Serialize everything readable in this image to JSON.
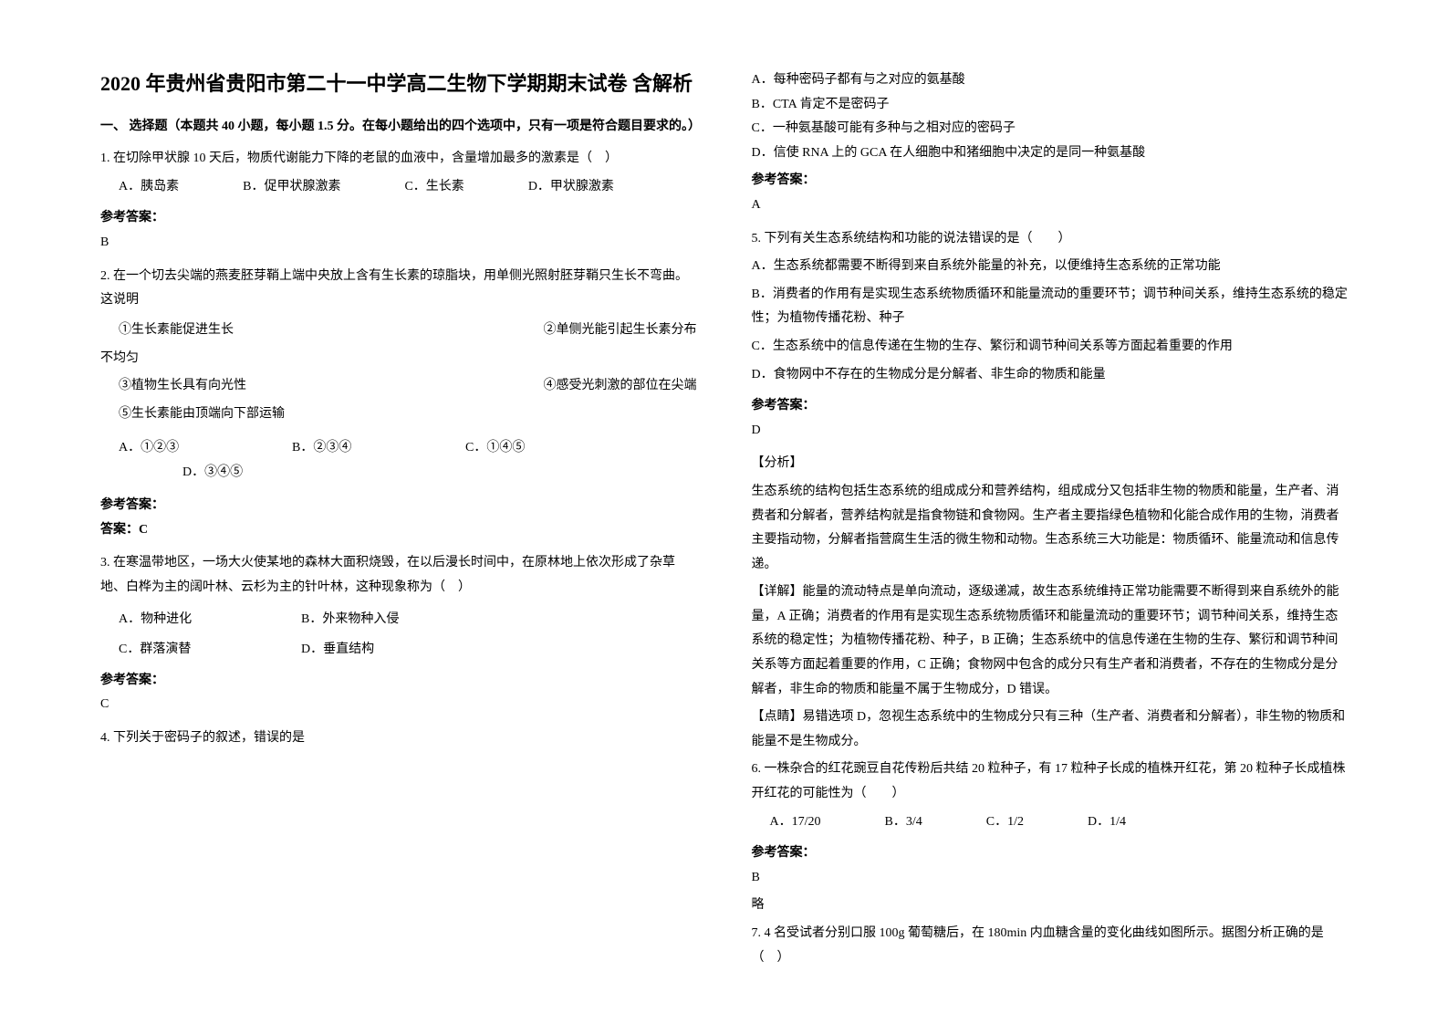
{
  "left": {
    "title": "2020 年贵州省贵阳市第二十一中学高二生物下学期期末试卷 含解析",
    "section_heading": "一、 选择题（本题共 40 小题，每小题 1.5 分。在每小题给出的四个选项中，只有一项是符合题目要求的。）",
    "q1": {
      "stem": "1. 在切除甲状腺 10 天后，物质代谢能力下降的老鼠的血液中，含量增加最多的激素是（　）",
      "optA": "A．胰岛素",
      "optB": "B．促甲状腺激素",
      "optC": "C．生长素",
      "optD": "D．甲状腺激素",
      "answer_label": "参考答案：",
      "answer": "B"
    },
    "q2": {
      "stem": "2. 在一个切去尖端的燕麦胚芽鞘上端中央放上含有生长素的琼脂块，用单侧光照射胚芽鞘只生长不弯曲。这说明",
      "s1": "①生长素能促进生长",
      "s2": "②单侧光能引起生长素分布",
      "s2b": "不均匀",
      "s3": "③植物生长具有向光性",
      "s4": "④感受光刺激的部位在尖端",
      "s5": "⑤生长素能由顶端向下部运输",
      "optA": "A．①②③",
      "optB": "B．②③④",
      "optC": "C．①④⑤",
      "optD": "D．③④⑤",
      "answer_label": "参考答案：",
      "answer": "答案：C"
    },
    "q3": {
      "stem": "3. 在寒温带地区，一场大火使某地的森林大面积烧毁，在以后漫长时间中，在原林地上依次形成了杂草地、白桦为主的阔叶林、云杉为主的针叶林，这种现象称为（　）",
      "optA": "A．物种进化",
      "optB": "B．外来物种入侵",
      "optC": "C．群落演替",
      "optD": "D．垂直结构",
      "answer_label": "参考答案：",
      "answer": "C"
    },
    "q4": {
      "stem": "4. 下列关于密码子的叙述，错误的是"
    }
  },
  "right": {
    "q4opts": {
      "a": "A．每种密码子都有与之对应的氨基酸",
      "b": "B．CTA 肯定不是密码子",
      "c": "C．一种氨基酸可能有多种与之相对应的密码子",
      "d": "D．信使 RNA 上的 GCA 在人细胞中和猪细胞中决定的是同一种氨基酸",
      "answer_label": "参考答案：",
      "answer": "A"
    },
    "q5": {
      "stem": "5. 下列有关生态系统结构和功能的说法错误的是（　　）",
      "a": "A．生态系统都需要不断得到来自系统外能量的补充，以便维持生态系统的正常功能",
      "b": "B．消费者的作用有是实现生态系统物质循环和能量流动的重要环节；调节种间关系，维持生态系统的稳定性；为植物传播花粉、种子",
      "c": "C．生态系统中的信息传递在生物的生存、繁衍和调节种间关系等方面起着重要的作用",
      "d": "D．食物网中不存在的生物成分是分解者、非生命的物质和能量",
      "answer_label": "参考答案：",
      "answer": "D",
      "analysis_label": "【分析】",
      "analysis": "生态系统的结构包括生态系统的组成成分和营养结构，组成成分又包括非生物的物质和能量，生产者、消费者和分解者，营养结构就是指食物链和食物网。生产者主要指绿色植物和化能合成作用的生物，消费者主要指动物，分解者指营腐生生活的微生物和动物。生态系统三大功能是：物质循环、能量流动和信息传递。",
      "detail_label": "【详解】",
      "detail": "能量的流动特点是单向流动，逐级递减，故生态系统维持正常功能需要不断得到来自系统外的能量，A 正确；消费者的作用有是实现生态系统物质循环和能量流动的重要环节；调节种间关系，维持生态系统的稳定性；为植物传播花粉、种子，B 正确；生态系统中的信息传递在生物的生存、繁衍和调节种间关系等方面起着重要的作用，C 正确；食物网中包含的成分只有生产者和消费者，不存在的生物成分是分解者，非生命的物质和能量不属于生物成分，D 错误。",
      "tip_label": "【点睛】",
      "tip": "易错选项 D，忽视生态系统中的生物成分只有三种（生产者、消费者和分解者），非生物的物质和能量不是生物成分。"
    },
    "q6": {
      "stem": "6. 一株杂合的红花豌豆自花传粉后共结 20 粒种子，有 17 粒种子长成的植株开红花，第 20 粒种子长成植株开红花的可能性为（　　）",
      "a": "A．17/20",
      "b": "B．3/4",
      "c": "C．1/2",
      "d": "D．1/4",
      "answer_label": "参考答案：",
      "answer": "B",
      "note": "略"
    },
    "q7": {
      "stem": "7. 4 名受试者分别口服 100g 葡萄糖后，在 180min 内血糖含量的变化曲线如图所示。据图分析正确的是（　）"
    }
  }
}
